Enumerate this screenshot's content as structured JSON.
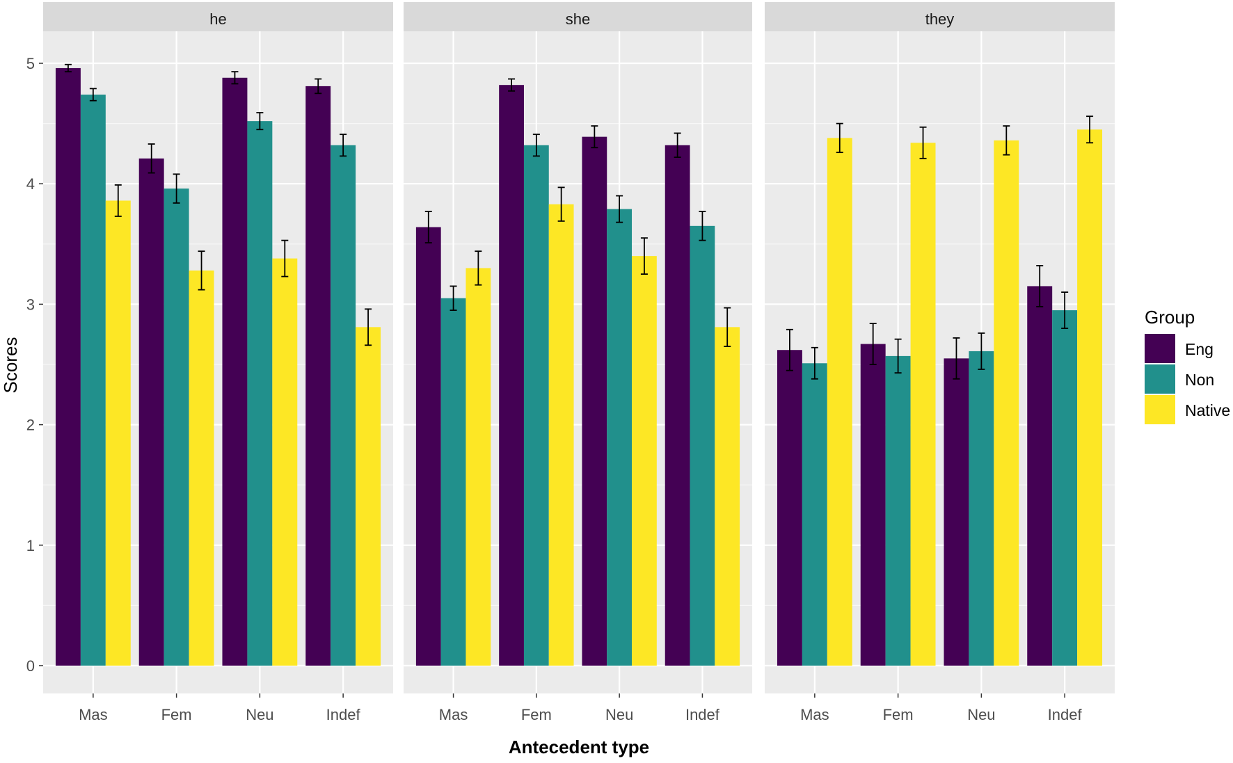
{
  "chart_data": {
    "type": "bar",
    "layout": "faceted",
    "facets": [
      "he",
      "she",
      "they"
    ],
    "categories": [
      "Mas",
      "Fem",
      "Neu",
      "Indef"
    ],
    "xlabel": "Antecedent type",
    "ylabel": "Scores",
    "ylim": [
      0,
      5.3
    ],
    "yticks": [
      0,
      1,
      2,
      3,
      4,
      5
    ],
    "grid": true,
    "legend": {
      "title": "Group",
      "position": "right"
    },
    "colors": {
      "Eng": "#440154",
      "Non": "#21908c",
      "Native": "#fde725"
    },
    "series": [
      {
        "name": "Eng",
        "values": {
          "he": [
            4.96,
            4.21,
            4.88,
            4.81
          ],
          "she": [
            3.64,
            4.82,
            4.39,
            4.32
          ],
          "they": [
            2.62,
            2.67,
            2.55,
            3.15
          ]
        },
        "errors": {
          "he": [
            0.03,
            0.12,
            0.05,
            0.06
          ],
          "she": [
            0.13,
            0.05,
            0.09,
            0.1
          ],
          "they": [
            0.17,
            0.17,
            0.17,
            0.17
          ]
        }
      },
      {
        "name": "Non",
        "values": {
          "he": [
            4.74,
            3.96,
            4.52,
            4.32
          ],
          "she": [
            3.05,
            4.32,
            3.79,
            3.65
          ],
          "they": [
            2.51,
            2.57,
            2.61,
            2.95
          ]
        },
        "errors": {
          "he": [
            0.05,
            0.12,
            0.07,
            0.09
          ],
          "she": [
            0.1,
            0.09,
            0.11,
            0.12
          ],
          "they": [
            0.13,
            0.14,
            0.15,
            0.15
          ]
        }
      },
      {
        "name": "Native",
        "values": {
          "he": [
            3.86,
            3.28,
            3.38,
            2.81
          ],
          "she": [
            3.3,
            3.83,
            3.4,
            2.81
          ],
          "they": [
            4.38,
            4.34,
            4.36,
            4.45
          ]
        },
        "errors": {
          "he": [
            0.13,
            0.16,
            0.15,
            0.15
          ],
          "she": [
            0.14,
            0.14,
            0.15,
            0.16
          ],
          "they": [
            0.12,
            0.13,
            0.12,
            0.11
          ]
        }
      }
    ]
  }
}
